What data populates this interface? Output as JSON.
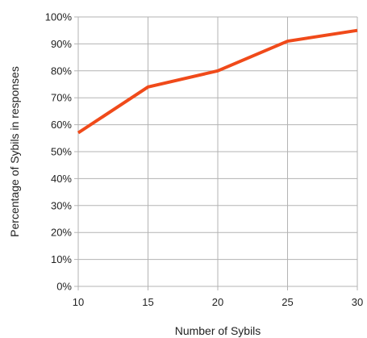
{
  "chart_data": {
    "type": "line",
    "title": "",
    "xlabel": "Number of Sybils",
    "ylabel": "Percentage of Sybils in responses",
    "x": [
      10,
      15,
      20,
      25,
      30
    ],
    "series": [
      {
        "values": [
          57,
          74,
          80,
          91,
          95
        ],
        "color": "#f04a1a"
      }
    ],
    "xlim": [
      10,
      30
    ],
    "ylim": [
      0,
      100
    ],
    "x_ticks": [
      10,
      15,
      20,
      25,
      30
    ],
    "y_ticks": [
      0,
      10,
      20,
      30,
      40,
      50,
      60,
      70,
      80,
      90,
      100
    ],
    "y_tick_suffix": "%",
    "grid": true,
    "legend": "none"
  }
}
